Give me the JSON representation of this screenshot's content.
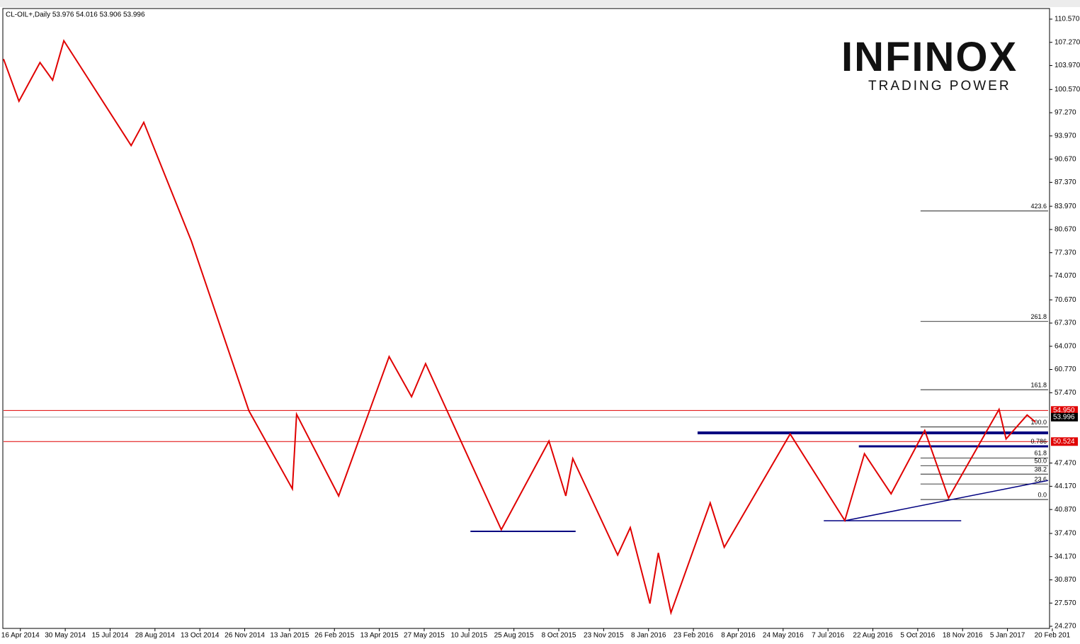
{
  "chart_data": {
    "type": "zigzag-price",
    "title": "CL-OIL+,Daily  53.976 54.016 53.906 53.996",
    "brand": "INFINOX",
    "tagline": "TRADING POWER",
    "xlim": [
      0,
      745
    ],
    "ylim": [
      24.27,
      110.57
    ],
    "xticks": [
      {
        "value": 12,
        "label": "16 Apr 2014"
      },
      {
        "value": 44,
        "label": "30 May 2014"
      },
      {
        "value": 76,
        "label": "15 Jul 2014"
      },
      {
        "value": 108,
        "label": "28 Aug 2014"
      },
      {
        "value": 140,
        "label": "13 Oct 2014"
      },
      {
        "value": 172,
        "label": "26 Nov 2014"
      },
      {
        "value": 204,
        "label": "13 Jan 2015"
      },
      {
        "value": 236,
        "label": "26 Feb 2015"
      },
      {
        "value": 268,
        "label": "13 Apr 2015"
      },
      {
        "value": 300,
        "label": "27 May 2015"
      },
      {
        "value": 332,
        "label": "10 Jul 2015"
      },
      {
        "value": 364,
        "label": "25 Aug 2015"
      },
      {
        "value": 396,
        "label": "8 Oct 2015"
      },
      {
        "value": 428,
        "label": "23 Nov 2015"
      },
      {
        "value": 460,
        "label": "8 Jan 2016"
      },
      {
        "value": 492,
        "label": "23 Feb 2016"
      },
      {
        "value": 524,
        "label": "8 Apr 2016"
      },
      {
        "value": 556,
        "label": "24 May 2016"
      },
      {
        "value": 588,
        "label": "7 Jul 2016"
      },
      {
        "value": 620,
        "label": "22 Aug 2016"
      },
      {
        "value": 652,
        "label": "5 Oct 2016"
      },
      {
        "value": 684,
        "label": "18 Nov 2016"
      },
      {
        "value": 716,
        "label": "5 Jan 2017"
      },
      {
        "value": 748,
        "label": "20 Feb 201"
      }
    ],
    "yticks": [
      {
        "value": 110.57,
        "label": "110.570"
      },
      {
        "value": 107.27,
        "label": "107.270"
      },
      {
        "value": 103.97,
        "label": "103.970"
      },
      {
        "value": 100.57,
        "label": "100.570"
      },
      {
        "value": 97.27,
        "label": "97.270"
      },
      {
        "value": 93.97,
        "label": "93.970"
      },
      {
        "value": 90.67,
        "label": "90.670"
      },
      {
        "value": 87.37,
        "label": "87.370"
      },
      {
        "value": 83.97,
        "label": "83.970"
      },
      {
        "value": 80.67,
        "label": "80.670"
      },
      {
        "value": 77.37,
        "label": "77.370"
      },
      {
        "value": 74.07,
        "label": "74.070"
      },
      {
        "value": 70.67,
        "label": "70.670"
      },
      {
        "value": 67.37,
        "label": "67.370"
      },
      {
        "value": 64.07,
        "label": "64.070"
      },
      {
        "value": 60.77,
        "label": "60.770"
      },
      {
        "value": 57.47,
        "label": "57.470"
      },
      {
        "value": 47.47,
        "label": "47.470"
      },
      {
        "value": 44.17,
        "label": "44.170"
      },
      {
        "value": 40.87,
        "label": "40.870"
      },
      {
        "value": 37.47,
        "label": "37.470"
      },
      {
        "value": 34.17,
        "label": "34.170"
      },
      {
        "value": 30.87,
        "label": "30.870"
      },
      {
        "value": 27.57,
        "label": "27.570"
      },
      {
        "value": 24.27,
        "label": "24.270"
      }
    ],
    "zigzag": {
      "color": "#e00000",
      "x": [
        0,
        11,
        26,
        35,
        43,
        91,
        100,
        134,
        175,
        206,
        209,
        239,
        275,
        291,
        301,
        355,
        389,
        401,
        406,
        438,
        447,
        461,
        467,
        476,
        504,
        514,
        561,
        600,
        614,
        633,
        657,
        674,
        710,
        715,
        730,
        736
      ],
      "values": [
        104.9,
        98.9,
        104.4,
        101.9,
        107.5,
        92.6,
        95.9,
        79.0,
        54.9,
        43.8,
        54.4,
        42.8,
        62.6,
        56.9,
        61.6,
        38.0,
        50.6,
        42.8,
        48.1,
        34.4,
        38.3,
        27.5,
        34.7,
        26.2,
        41.8,
        35.5,
        51.6,
        39.3,
        48.8,
        43.1,
        52.1,
        42.5,
        55.1,
        50.9,
        54.3,
        53.3
      ]
    },
    "price_levels": [
      {
        "value": 54.95,
        "label": "54.950",
        "color": "#e00000"
      },
      {
        "value": 53.996,
        "label": "53.996",
        "color": "#000000"
      },
      {
        "value": 50.524,
        "label": "50.524",
        "color": "#e00000"
      }
    ],
    "fibonacci": {
      "x_start": 654,
      "color": "#000000",
      "levels": [
        {
          "value": 83.3,
          "label": "423.6"
        },
        {
          "value": 67.6,
          "label": "261.8"
        },
        {
          "value": 57.9,
          "label": "161.8"
        },
        {
          "value": 52.6,
          "label": "100.0"
        },
        {
          "value": 49.9,
          "label": "0.786"
        },
        {
          "value": 48.2,
          "label": "61.8"
        },
        {
          "value": 47.1,
          "label": "50.0"
        },
        {
          "value": 45.9,
          "label": "38.2"
        },
        {
          "value": 44.5,
          "label": "23.6"
        },
        {
          "value": 42.29,
          "label": "0.0"
        }
      ]
    },
    "trendlines": {
      "color": "#000080",
      "lines": [
        {
          "x": [
            495,
            745
          ],
          "values": [
            51.76,
            51.76
          ],
          "width": 4
        },
        {
          "x": [
            610,
            745
          ],
          "values": [
            49.85,
            49.85
          ],
          "width": 3
        },
        {
          "x": [
            333,
            408
          ],
          "values": [
            37.76,
            37.76
          ],
          "width": 2
        },
        {
          "x": [
            585,
            683
          ],
          "values": [
            39.27,
            39.27
          ],
          "width": 1.5
        },
        {
          "x": [
            600,
            745
          ],
          "values": [
            39.27,
            45.0
          ],
          "width": 1.5
        }
      ]
    }
  }
}
